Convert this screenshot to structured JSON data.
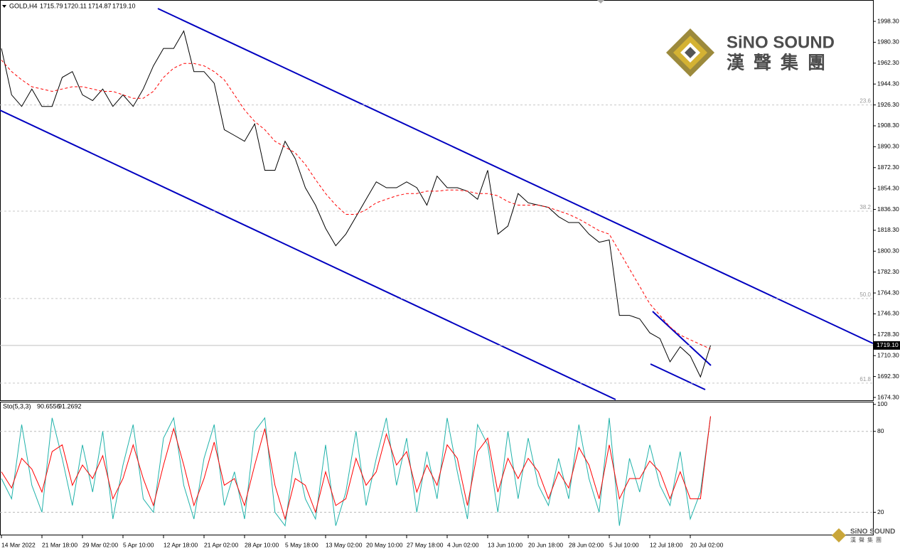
{
  "chart_data": [
    {
      "type": "line",
      "title": "GOLD,H4",
      "ohlc": [
        "1715.79",
        "1720.11",
        "1714.87",
        "1719.10"
      ],
      "categories": [
        "14 Mar 2022",
        null,
        null,
        null,
        "21 Mar 18:00",
        null,
        null,
        null,
        "29 Mar 02:00",
        null,
        null,
        null,
        "5 Apr 10:00",
        null,
        null,
        null,
        "12 Apr 18:00",
        null,
        null,
        null,
        "21 Apr 02:00",
        null,
        null,
        null,
        "28 Apr 10:00",
        null,
        null,
        null,
        "5 May 18:00",
        null,
        null,
        null,
        "13 May 02:00",
        null,
        null,
        null,
        "20 May 10:00",
        null,
        null,
        null,
        "27 May 18:00",
        null,
        null,
        null,
        "4 Jun 02:00",
        null,
        null,
        null,
        "13 Jun 10:00",
        null,
        null,
        null,
        "20 Jun 18:00",
        null,
        null,
        null,
        "28 Jun 02:00",
        null,
        null,
        null,
        "5 Jul 10:00",
        null,
        null,
        null,
        "12 Jul 18:00",
        null,
        null,
        null,
        "20 Jul 02:00",
        null,
        null
      ],
      "series": [
        {
          "color": "#000000",
          "values": [
            1975,
            1935,
            1925,
            1940,
            1925,
            1925,
            1950,
            1955,
            1935,
            1930,
            1940,
            1925,
            1935,
            1925,
            1940,
            1960,
            1975,
            1975,
            1990,
            1955,
            1955,
            1945,
            1905,
            1900,
            1895,
            1910,
            1870,
            1870,
            1895,
            1880,
            1855,
            1840,
            1820,
            1805,
            1815,
            1830,
            1845,
            1860,
            1855,
            1855,
            1860,
            1855,
            1840,
            1865,
            1855,
            1855,
            1852,
            1845,
            1870,
            1815,
            1822,
            1850,
            1842,
            1840,
            1838,
            1830,
            1825,
            1825,
            1815,
            1808,
            1810,
            1745,
            1745,
            1742,
            1730,
            1725,
            1705,
            1718,
            1710,
            1692,
            1719.1
          ]
        },
        {
          "color": "#ff0000",
          "dashed": true,
          "values": [
            1965,
            1955,
            1948,
            1942,
            1940,
            1938,
            1940,
            1942,
            1942,
            1940,
            1938,
            1938,
            1935,
            1932,
            1932,
            1938,
            1950,
            1958,
            1962,
            1962,
            1960,
            1955,
            1948,
            1935,
            1922,
            1912,
            1905,
            1895,
            1890,
            1885,
            1875,
            1862,
            1850,
            1840,
            1832,
            1832,
            1836,
            1842,
            1845,
            1848,
            1850,
            1850,
            1852,
            1852,
            1853,
            1853,
            1852,
            1850,
            1850,
            1848,
            1843,
            1840,
            1840,
            1840,
            1838,
            1835,
            1832,
            1828,
            1823,
            1818,
            1815,
            1800,
            1785,
            1770,
            1755,
            1745,
            1735,
            1728,
            1724,
            1720,
            1716
          ]
        }
      ],
      "ylim": [
        1671.85,
        2016.7
      ],
      "yticks": [
        {
          "value": 1998.3,
          "label": "1998.30"
        },
        {
          "value": 1980.3,
          "label": "1980.30"
        },
        {
          "value": 1962.3,
          "label": "1962.30"
        },
        {
          "value": 1944.3,
          "label": "1944.30"
        },
        {
          "value": 1926.3,
          "label": "1926.30"
        },
        {
          "value": 1908.3,
          "label": "1908.30"
        },
        {
          "value": 1890.3,
          "label": "1890.30"
        },
        {
          "value": 1872.3,
          "label": "1872.30"
        },
        {
          "value": 1854.3,
          "label": "1854.30"
        },
        {
          "value": 1836.3,
          "label": "1836.30"
        },
        {
          "value": 1818.3,
          "label": "1818.30"
        },
        {
          "value": 1800.3,
          "label": "1800.30"
        },
        {
          "value": 1782.3,
          "label": "1782.30"
        },
        {
          "value": 1764.3,
          "label": "1764.30"
        },
        {
          "value": 1746.3,
          "label": "1746.30"
        },
        {
          "value": 1728.3,
          "label": "1728.30"
        },
        {
          "value": 1710.3,
          "label": "1710.30"
        },
        {
          "value": 1692.3,
          "label": "1692.30"
        },
        {
          "value": 1674.3,
          "label": "1674.30"
        }
      ],
      "fib_levels": [
        {
          "label": "23.6",
          "value": 1926.3
        },
        {
          "label": "38.2",
          "value": 1834.8
        },
        {
          "label": "50.0",
          "value": 1759.5
        },
        {
          "label": "61.8",
          "value": 1686.6
        }
      ],
      "last_price": {
        "value": 1719.1,
        "label": "1719.10"
      }
    },
    {
      "type": "line",
      "title": "Sto(5,3,3)",
      "series": [
        {
          "color": "#20b2aa",
          "values": [
            45,
            30,
            85,
            40,
            20,
            90,
            60,
            25,
            70,
            35,
            80,
            15,
            55,
            85,
            30,
            20,
            75,
            90,
            40,
            15,
            60,
            85,
            25,
            50,
            15,
            80,
            90,
            20,
            10,
            65,
            30,
            15,
            70,
            10,
            35,
            80,
            25,
            60,
            90,
            40,
            75,
            20,
            65,
            30,
            90,
            50,
            15,
            85,
            70,
            20,
            80,
            30,
            75,
            40,
            25,
            60,
            30,
            85,
            45,
            20,
            90,
            10,
            60,
            35,
            70,
            40,
            25,
            65,
            15,
            35,
            90.6556
          ]
        },
        {
          "color": "#ff0000",
          "values": [
            50,
            38,
            60,
            52,
            35,
            65,
            70,
            40,
            55,
            45,
            62,
            30,
            45,
            70,
            45,
            25,
            55,
            82,
            55,
            25,
            45,
            72,
            40,
            45,
            25,
            55,
            82,
            40,
            15,
            45,
            40,
            20,
            50,
            25,
            30,
            60,
            40,
            50,
            78,
            55,
            65,
            35,
            55,
            40,
            70,
            60,
            25,
            65,
            75,
            35,
            60,
            45,
            60,
            50,
            30,
            50,
            38,
            68,
            55,
            30,
            70,
            30,
            45,
            45,
            58,
            50,
            30,
            50,
            30,
            30,
            91.2692
          ]
        }
      ],
      "ylim": [
        3.4,
        102
      ],
      "yticks": [
        100,
        80,
        20
      ],
      "levels": [
        80,
        20
      ]
    }
  ],
  "logo": {
    "name": "SiNO SOUND",
    "chinese": "漢聲集團"
  }
}
